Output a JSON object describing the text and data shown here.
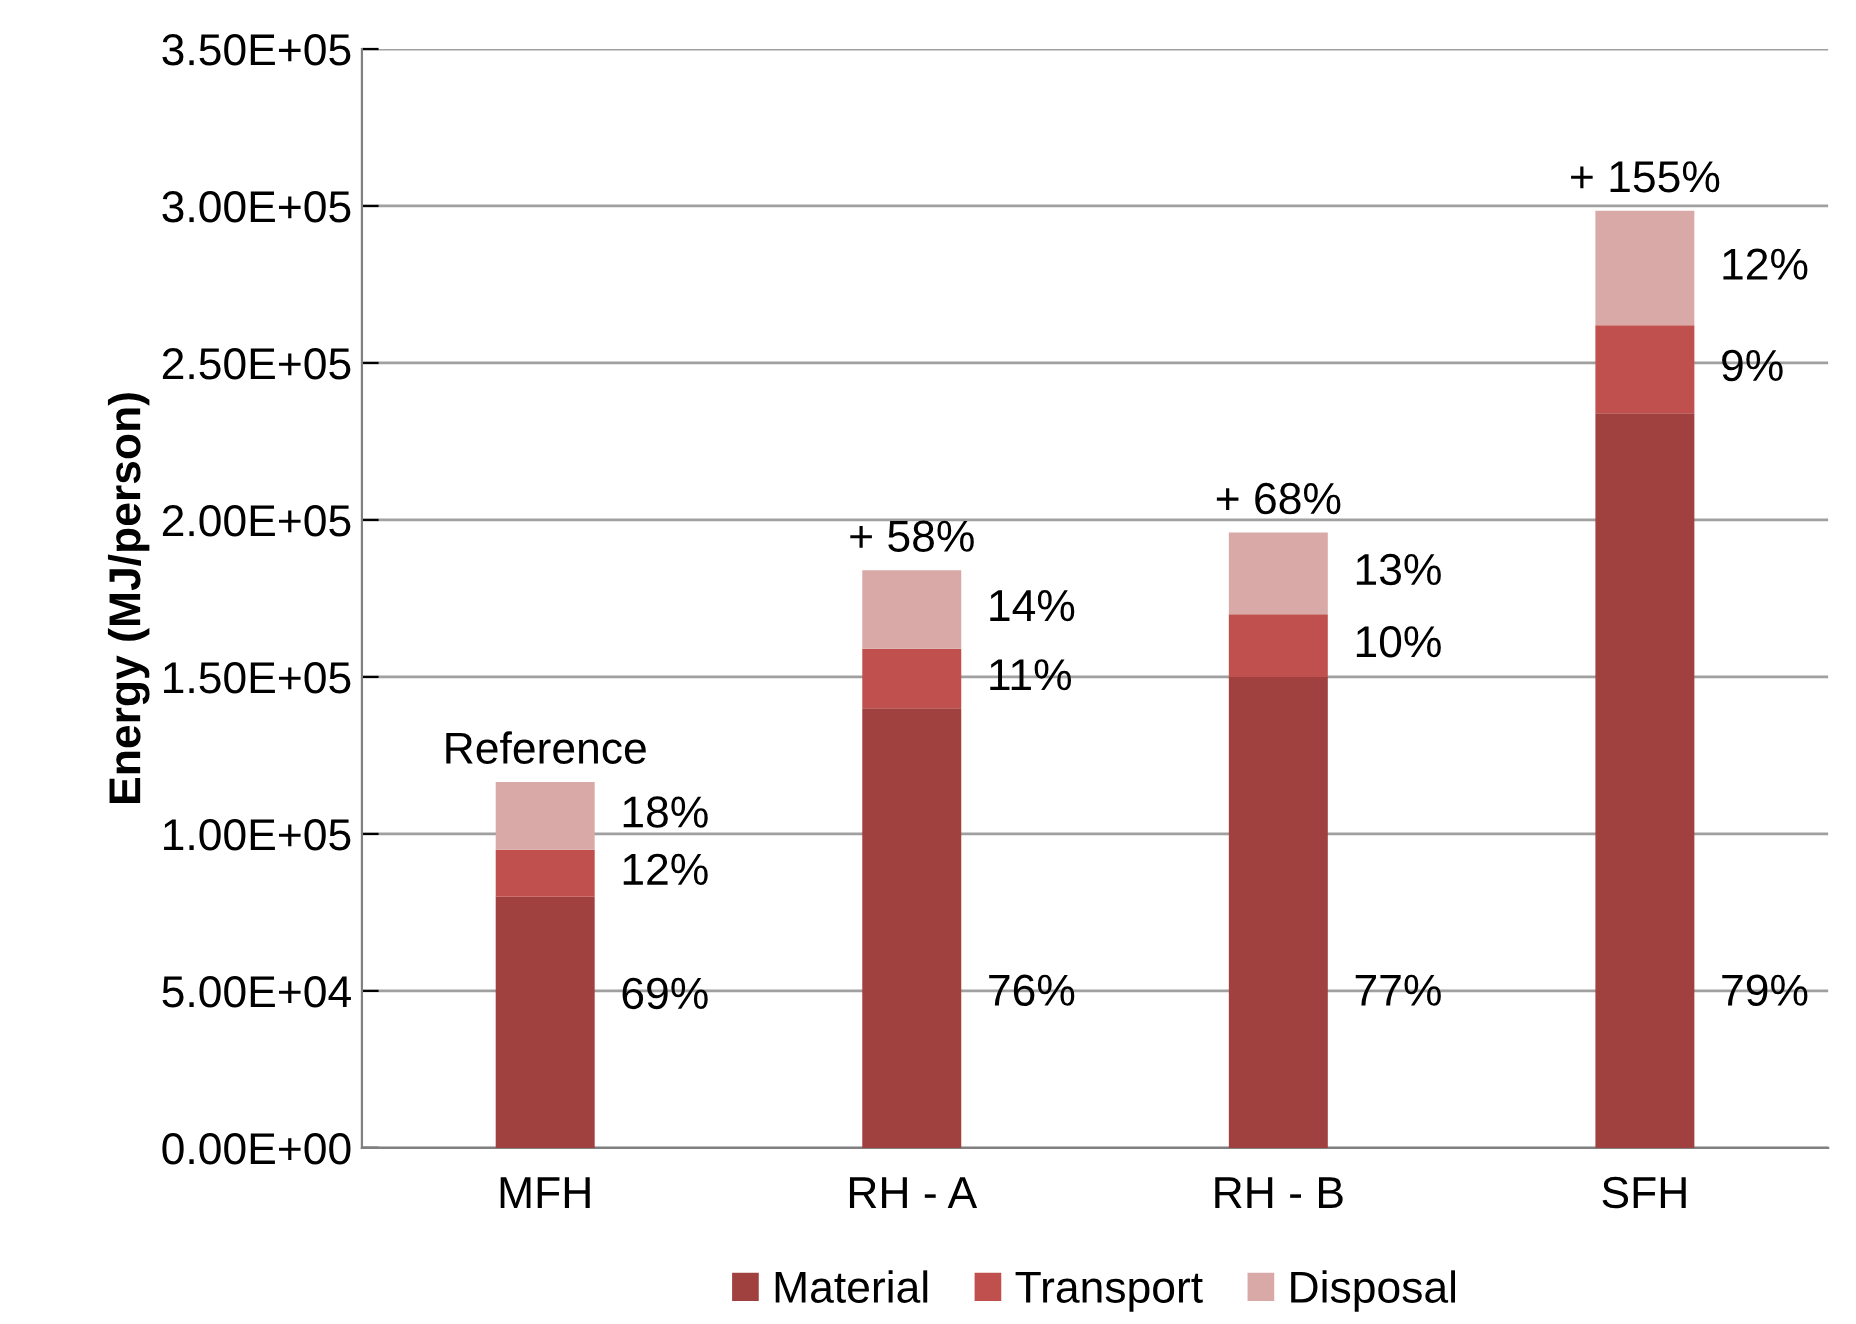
{
  "chart_data": {
    "type": "bar",
    "stacked": true,
    "ylabel": "Energy (MJ/person)",
    "categories": [
      "MFH",
      "RH - A",
      "RH - B",
      "SFH"
    ],
    "series": [
      {
        "name": "Material",
        "color": "#a0403f",
        "values": [
          80000,
          140000,
          150000,
          234000
        ]
      },
      {
        "name": "Transport",
        "color": "#c0504d",
        "values": [
          15000,
          19000,
          20000,
          28000
        ]
      },
      {
        "name": "Disposal",
        "color": "#d9a9a8",
        "values": [
          21500,
          25000,
          26000,
          36500
        ]
      }
    ],
    "annotations": [
      "Reference",
      "18%",
      "12%",
      "69%",
      "+ 58%",
      "14%",
      "11%",
      "76%",
      "+ 68%",
      "13%",
      "10%",
      "77%",
      "+ 155%",
      "12%",
      "9%",
      "79%"
    ],
    "ylim": [
      0,
      350000
    ],
    "yticks": [
      {
        "value": 0,
        "label": "0.00E+00"
      },
      {
        "value": 50000,
        "label": "5.00E+04"
      },
      {
        "value": 100000,
        "label": "1.00E+05"
      },
      {
        "value": 150000,
        "label": "1.50E+05"
      },
      {
        "value": 200000,
        "label": "2.00E+05"
      },
      {
        "value": 250000,
        "label": "2.50E+05"
      },
      {
        "value": 300000,
        "label": "3.00E+05"
      },
      {
        "value": 350000,
        "label": "3.50E+05"
      }
    ],
    "grid": "y",
    "legend": "bottom"
  }
}
